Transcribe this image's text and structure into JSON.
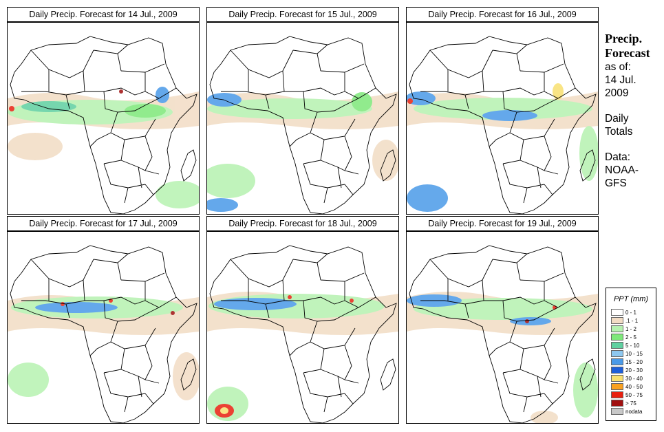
{
  "panels": [
    {
      "title": "Daily Precip. Forecast for  14 Jul., 2009"
    },
    {
      "title": "Daily Precip. Forecast for  15 Jul., 2009"
    },
    {
      "title": "Daily Precip. Forecast for  16 Jul., 2009"
    },
    {
      "title": "Daily Precip. Forecast for  17 Jul., 2009"
    },
    {
      "title": "Daily Precip. Forecast for  18 Jul., 2009"
    },
    {
      "title": "Daily Precip. Forecast for  19 Jul., 2009"
    }
  ],
  "info": {
    "heading1": "Precip.",
    "heading2": "Forecast",
    "asof1": "as of:",
    "asof2": "14 Jul.",
    "asof3": "2009",
    "totals1": "Daily",
    "totals2": "Totals",
    "data1": "Data:",
    "data2": "NOAA-",
    "data3": "GFS"
  },
  "legend": {
    "title": "PPT (mm)",
    "items": [
      {
        "label": "0 - 1",
        "color": "#ffffff"
      },
      {
        "label": ".1 - 1",
        "color": "#f2dcc4"
      },
      {
        "label": "1 - 2",
        "color": "#b6f2b0"
      },
      {
        "label": "2 - 5",
        "color": "#7ee87a"
      },
      {
        "label": "5 - 10",
        "color": "#5fd0a0"
      },
      {
        "label": "10 - 15",
        "color": "#8ec8f0"
      },
      {
        "label": "15 - 20",
        "color": "#4a9ae8"
      },
      {
        "label": "20 - 30",
        "color": "#1e5fd8"
      },
      {
        "label": "30 - 40",
        "color": "#f8e070"
      },
      {
        "label": "40 - 50",
        "color": "#f8a020"
      },
      {
        "label": "50 - 75",
        "color": "#e82010"
      },
      {
        "label": "> 75",
        "color": "#a01010"
      },
      {
        "label": "nodata",
        "color": "#c8c8c8"
      }
    ]
  }
}
